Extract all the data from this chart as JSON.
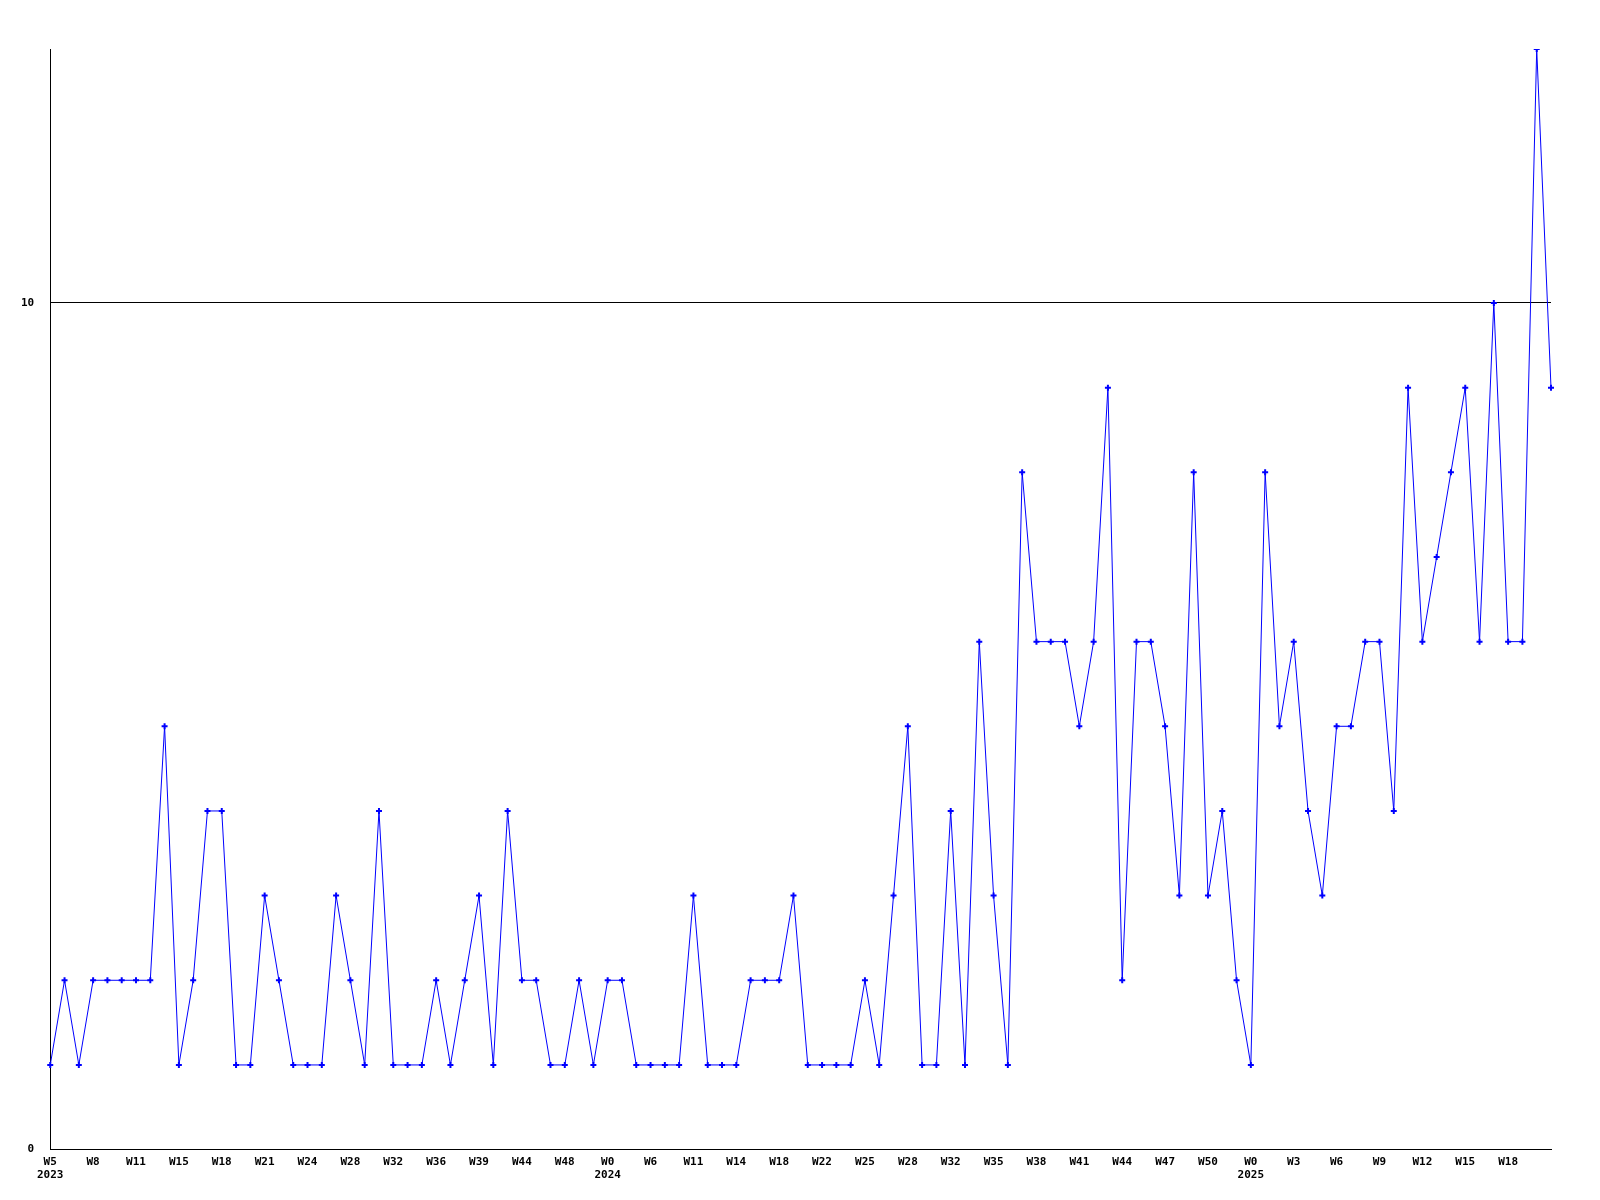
{
  "chart_data": {
    "type": "line",
    "categories": [
      "W5\n2023",
      null,
      null,
      "W8",
      null,
      null,
      "W11",
      null,
      null,
      "W15",
      null,
      null,
      "W18",
      null,
      null,
      "W21",
      null,
      null,
      "W24",
      null,
      null,
      "W28",
      null,
      null,
      "W32",
      null,
      null,
      "W36",
      null,
      null,
      "W39",
      null,
      null,
      "W44",
      null,
      null,
      "W48",
      null,
      null,
      "W0\n2024",
      null,
      null,
      "W6",
      null,
      null,
      "W11",
      null,
      null,
      "W14",
      null,
      null,
      "W18",
      null,
      null,
      "W22",
      null,
      null,
      "W25",
      null,
      null,
      "W28",
      null,
      null,
      "W32",
      null,
      null,
      "W35",
      null,
      null,
      "W38",
      null,
      null,
      "W41",
      null,
      null,
      "W44",
      null,
      null,
      "W47",
      null,
      null,
      "W50",
      null,
      null,
      "W0\n2025",
      null,
      null,
      "W3",
      null,
      null,
      "W6",
      null,
      null,
      "W9",
      null,
      null,
      "W12",
      null,
      null,
      "W15",
      null,
      null,
      "W18",
      null,
      null,
      null
    ],
    "series": [
      {
        "color": "#0000ff",
        "values": [
          1,
          2,
          1,
          2,
          2,
          2,
          2,
          2,
          5,
          1,
          2,
          4,
          4,
          1,
          1,
          3,
          2,
          1,
          1,
          1,
          3,
          2,
          1,
          4,
          1,
          1,
          1,
          2,
          1,
          2,
          3,
          1,
          4,
          2,
          2,
          1,
          1,
          2,
          1,
          2,
          2,
          1,
          1,
          1,
          1,
          3,
          1,
          1,
          1,
          2,
          2,
          2,
          3,
          1,
          1,
          1,
          1,
          2,
          1,
          3,
          5,
          1,
          1,
          4,
          1,
          6,
          3,
          1,
          8,
          6,
          6,
          6,
          5,
          6,
          9,
          2,
          6,
          6,
          5,
          3,
          8,
          3,
          4,
          2,
          1,
          8,
          5,
          6,
          4,
          3,
          5,
          5,
          6,
          6,
          4,
          9,
          6,
          7,
          8,
          9,
          6,
          10,
          6,
          6,
          13,
          9
        ]
      }
    ],
    "ylim": [
      0,
      13
    ],
    "yticks": [
      0,
      10
    ],
    "grid": "y",
    "marker": "cross"
  }
}
